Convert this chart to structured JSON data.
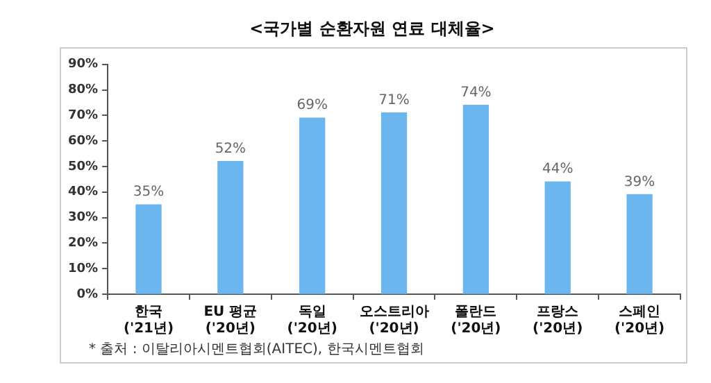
{
  "chart_data": {
    "type": "bar",
    "title": "<국가별 순환자원 연료 대체율>",
    "categories": [
      "한국\n('21년)",
      "EU 평균\n('20년)",
      "독일\n('20년)",
      "오스트리아\n('20년)",
      "폴란드\n('20년)",
      "프랑스\n('20년)",
      "스페인\n('20년)"
    ],
    "values": [
      35,
      52,
      69,
      71,
      74,
      44,
      39
    ],
    "value_labels": [
      "35%",
      "52%",
      "69%",
      "71%",
      "74%",
      "44%",
      "39%"
    ],
    "color": "#6cb6f0",
    "ylim": [
      0,
      90
    ],
    "yticks": [
      {
        "value": 0,
        "label": "0%"
      },
      {
        "value": 10,
        "label": "10%"
      },
      {
        "value": 20,
        "label": "20%"
      },
      {
        "value": 30,
        "label": "30%"
      },
      {
        "value": 40,
        "label": "40%"
      },
      {
        "value": 50,
        "label": "50%"
      },
      {
        "value": 60,
        "label": "60%"
      },
      {
        "value": 70,
        "label": "70%"
      },
      {
        "value": 80,
        "label": "80%"
      },
      {
        "value": 90,
        "label": "90%"
      }
    ],
    "grid": false,
    "legend": false,
    "annotations": [
      "* 출처 : 이탈리아시멘트협회(AITEC), 한국시멘트협회"
    ]
  }
}
